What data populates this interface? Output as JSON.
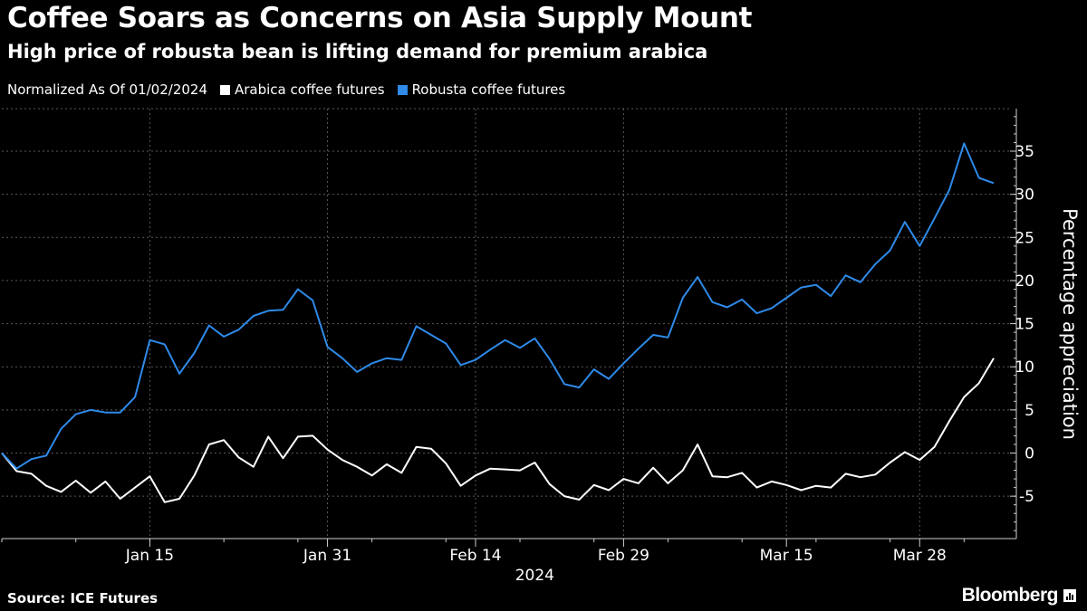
{
  "header": {
    "title": "Coffee Soars as Concerns on Asia Supply Mount",
    "subtitle": "High price of robusta bean is lifting demand for premium arabica"
  },
  "legend": {
    "note": "Normalized As Of 01/02/2024",
    "items": [
      {
        "label": "Arabica coffee futures",
        "color": "#ffffff"
      },
      {
        "label": "Robusta coffee futures",
        "color": "#2f8ae8"
      }
    ]
  },
  "footer": {
    "source": "Source: ICE Futures",
    "brand": "Bloomberg"
  },
  "chart_data": {
    "type": "line",
    "title": "Coffee Soars as Concerns on Asia Supply Mount",
    "subtitle": "High price of robusta bean is lifting demand for premium arabica",
    "ylabel": "Percentage appreciation",
    "xlabel": "2024",
    "ylim": [
      -10,
      40
    ],
    "yticks": [
      -5,
      0,
      5,
      10,
      15,
      20,
      25,
      30,
      35
    ],
    "xticks": [
      {
        "label": "Jan 15",
        "index": 10
      },
      {
        "label": "Jan 31",
        "index": 22
      },
      {
        "label": "Feb 14",
        "index": 32
      },
      {
        "label": "Feb 29",
        "index": 42
      },
      {
        "label": "Mar 15",
        "index": 53
      },
      {
        "label": "Mar 28",
        "index": 62
      }
    ],
    "year_label": "2024",
    "grid": true,
    "n_points": 68,
    "series": [
      {
        "name": "Arabica coffee futures",
        "color": "#ffffff",
        "values": [
          0,
          -2.1,
          -2.4,
          -3.8,
          -4.5,
          -3.2,
          -4.6,
          -3.3,
          -5.3,
          -4.0,
          -2.7,
          -5.7,
          -5.3,
          -2.6,
          1.0,
          1.5,
          -0.5,
          -1.6,
          1.9,
          -0.6,
          1.9,
          2.0,
          0.4,
          -0.8,
          -1.6,
          -2.6,
          -1.3,
          -2.3,
          0.7,
          0.5,
          -1.2,
          -3.8,
          -2.6,
          -1.8,
          -1.9,
          -2.0,
          -1.1,
          -3.6,
          -5.0,
          -5.4,
          -3.7,
          -4.3,
          -3.0,
          -3.5,
          -1.7,
          -3.5,
          -2.0,
          1.0,
          -2.7,
          -2.8,
          -2.3,
          -4.0,
          -3.3,
          -3.7,
          -4.3,
          -3.8,
          -4.0,
          -2.4,
          -2.8,
          -2.5,
          -1.1,
          0.1,
          -0.8,
          0.7,
          3.7,
          6.5,
          8.1,
          11.0
        ]
      },
      {
        "name": "Robusta coffee futures",
        "color": "#2f8ae8",
        "values": [
          0,
          -1.8,
          -0.7,
          -0.3,
          2.8,
          4.5,
          5.0,
          4.7,
          4.7,
          6.5,
          13.1,
          12.6,
          9.2,
          11.6,
          14.8,
          13.5,
          14.3,
          15.9,
          16.5,
          16.6,
          19.0,
          17.7,
          12.3,
          11.0,
          9.4,
          10.4,
          11.0,
          10.8,
          14.7,
          13.7,
          12.7,
          10.2,
          10.8,
          12.0,
          13.1,
          12.2,
          13.3,
          10.9,
          8.0,
          7.6,
          9.7,
          8.6,
          10.4,
          12.1,
          13.7,
          13.4,
          18.0,
          20.4,
          17.5,
          16.9,
          17.8,
          16.2,
          16.8,
          18.0,
          19.2,
          19.5,
          18.2,
          20.6,
          19.8,
          21.9,
          23.5,
          26.8,
          24.0,
          27.2,
          30.5,
          35.9,
          31.9,
          31.3
        ]
      }
    ]
  }
}
